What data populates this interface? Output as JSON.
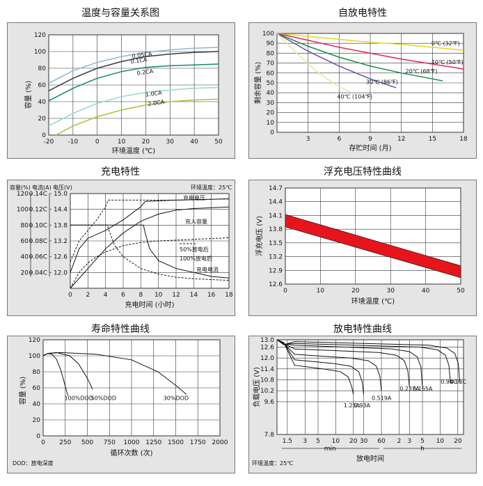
{
  "chart_data": [
    {
      "type": "line",
      "title": "温度与容量关系图",
      "xlabel": "环境温度 (℃)",
      "ylabel": "容量 (%)",
      "xlim": [
        -20,
        50
      ],
      "ylim": [
        0,
        120
      ],
      "xticks": [
        -20,
        -10,
        0,
        10,
        20,
        30,
        40,
        50
      ],
      "yticks": [
        0,
        20,
        40,
        60,
        80,
        100,
        120
      ],
      "grid": true,
      "series": [
        {
          "name": "0.05CA",
          "color": "#8fb6d0",
          "x": [
            -20,
            -10,
            0,
            10,
            20,
            30,
            40,
            50
          ],
          "y": [
            62,
            77,
            87,
            94,
            99,
            102,
            104,
            105
          ]
        },
        {
          "name": "0.1CA",
          "color": "#3a3a3a",
          "x": [
            -20,
            -10,
            0,
            10,
            20,
            30,
            40,
            50
          ],
          "y": [
            53,
            68,
            80,
            88,
            94,
            97,
            99,
            100
          ]
        },
        {
          "name": "0.2CA",
          "color": "#0e8a6a",
          "x": [
            -20,
            -10,
            0,
            10,
            20,
            30,
            40,
            50
          ],
          "y": [
            41,
            56,
            68,
            76,
            81,
            83,
            84,
            85
          ]
        },
        {
          "name": "1.0CA",
          "color": "#8fd9cf",
          "x": [
            -20,
            -10,
            0,
            10,
            20,
            30,
            40,
            50
          ],
          "y": [
            11,
            26,
            38,
            46,
            51,
            54,
            56,
            57
          ]
        },
        {
          "name": "2.0CA",
          "color": "#9cc83a",
          "x": [
            -17,
            -10,
            0,
            10,
            20,
            30,
            40,
            50
          ],
          "y": [
            0,
            11,
            22,
            30,
            36,
            40,
            42,
            43
          ]
        }
      ]
    },
    {
      "type": "line",
      "title": "自放电特性",
      "xlabel": "存贮时间 (月)",
      "ylabel": "剩余容量 (%)",
      "xlim": [
        0,
        18
      ],
      "ylim": [
        0,
        100
      ],
      "xticks": [
        3,
        6,
        9,
        12,
        15,
        18
      ],
      "yticks": [
        0,
        10,
        20,
        30,
        40,
        50,
        60,
        70,
        80,
        90,
        100
      ],
      "grid": true,
      "series": [
        {
          "name": "0℃ (32℉)",
          "color": "#e6d51a",
          "x": [
            0,
            3,
            6,
            9,
            12,
            15,
            18
          ],
          "y": [
            100,
            97,
            94,
            91,
            89,
            86,
            83
          ]
        },
        {
          "name": "10℃ (50℉)",
          "color": "#e0265a",
          "x": [
            0,
            3,
            6,
            9,
            12,
            15,
            18
          ],
          "y": [
            100,
            93,
            86,
            80,
            74,
            69,
            64
          ]
        },
        {
          "name": "20℃ (68℉)",
          "color": "#1d8a4a",
          "x": [
            0,
            3,
            6,
            9,
            12,
            15,
            16
          ],
          "y": [
            100,
            87,
            76,
            67,
            60,
            54,
            52
          ]
        },
        {
          "name": "30℃ (86℉)",
          "color": "#6d4da8",
          "x": [
            0,
            3,
            6,
            9,
            11.5
          ],
          "y": [
            100,
            82,
            67,
            54,
            45
          ]
        },
        {
          "name": "40℃ (104℉)",
          "color": "#e8e6a0",
          "x": [
            0,
            2,
            4,
            6,
            7
          ],
          "y": [
            100,
            79,
            60,
            46,
            41
          ]
        }
      ]
    },
    {
      "type": "line",
      "title": "充电特性",
      "xlabel": "充电时间 (小时)",
      "ylabel_capacity": "容量(%)",
      "ylabel_current": "电流(A)",
      "ylabel_voltage": "电压(V)",
      "note": "环境温度：25℃",
      "xlim": [
        0,
        18
      ],
      "xticks": [
        0,
        2,
        4,
        6,
        8,
        10,
        12,
        14,
        16,
        18
      ],
      "capacity_ticks": [
        20,
        40,
        60,
        80,
        100,
        120
      ],
      "current_ticks": [
        "0.04C",
        "0.06C",
        "0.08C",
        "0.10C",
        "0.12C",
        "0.14C"
      ],
      "voltage_ticks": [
        12.0,
        12.6,
        13.2,
        13.8,
        14.4,
        15.0
      ],
      "grid": true,
      "legend": [
        "50%放电后",
        "100%放电后"
      ],
      "annotations": [
        "充电电压",
        "充入容量",
        "充电电流"
      ],
      "series": [
        {
          "name": "充电电压 100%放电后",
          "style": "solid",
          "x": [
            0,
            1,
            2,
            4,
            6,
            8,
            8.5,
            12,
            18
          ],
          "y_voltage": [
            12.0,
            12.9,
            13.3,
            13.6,
            14.0,
            14.5,
            14.7,
            14.75,
            14.8
          ]
        },
        {
          "name": "充电电压 50%放电后",
          "style": "dashed",
          "x": [
            0,
            1,
            2,
            3,
            4,
            4.3,
            8,
            12,
            18
          ],
          "y_voltage": [
            12.4,
            13.2,
            13.6,
            14.0,
            14.5,
            14.75,
            14.75,
            14.75,
            14.8
          ]
        },
        {
          "name": "充入容量 100%放电后",
          "style": "solid",
          "x": [
            0,
            2,
            4,
            6,
            8,
            10,
            12,
            14,
            16,
            18
          ],
          "y_capacity": [
            0,
            25,
            50,
            70,
            85,
            94,
            99,
            101,
            102,
            103
          ]
        },
        {
          "name": "充入容量 50%放电后",
          "style": "dashed",
          "x": [
            0,
            1,
            2,
            3,
            4,
            6,
            8,
            10,
            12,
            14,
            16,
            18
          ],
          "y_capacity": [
            0,
            20,
            32,
            40,
            46,
            54,
            58,
            60,
            61,
            62,
            63,
            64
          ]
        },
        {
          "name": "充电电流 100%放电后",
          "style": "solid",
          "x": [
            0,
            8.3,
            8.5,
            9,
            10,
            12,
            14,
            16,
            18
          ],
          "y_current": [
            "0.10C",
            "0.10C",
            "0.09C",
            "0.07C",
            "0.055C",
            "0.045C",
            "0.04C",
            "0.035C",
            "0.033C"
          ]
        },
        {
          "name": "充电电流 50%放电后",
          "style": "dashed",
          "x": [
            0,
            4.2,
            4.5,
            5,
            6,
            8,
            10,
            12,
            14,
            16,
            18
          ],
          "y_current": [
            "0.10C",
            "0.10C",
            "0.09C",
            "0.075C",
            "0.06C",
            "0.045C",
            "0.038C",
            "0.034C",
            "0.032C",
            "0.031C",
            "0.03C"
          ]
        }
      ]
    },
    {
      "type": "area",
      "title": "浮充电压特性曲线",
      "xlabel": "环境温度 (℃)",
      "ylabel": "浮充电压 (V)",
      "xlim": [
        0,
        50
      ],
      "ylim": [
        12.6,
        14.7
      ],
      "xticks": [
        0,
        10,
        20,
        30,
        40,
        50
      ],
      "yticks": [
        12.6,
        12.9,
        13.2,
        13.5,
        13.8,
        14.1,
        14.4,
        14.7
      ],
      "grid": true,
      "band": {
        "color": "#e8141c",
        "x": [
          0,
          50
        ],
        "upper": [
          14.12,
          13.0
        ],
        "lower": [
          13.85,
          12.74
        ]
      }
    },
    {
      "type": "line",
      "title": "寿命特性曲线",
      "xlabel": "循环次数 (次)",
      "ylabel": "容量 (%)",
      "footnote": "DOD：放电深度",
      "xlim": [
        0,
        2000
      ],
      "ylim": [
        0,
        120
      ],
      "xticks": [
        0,
        250,
        500,
        750,
        1000,
        1250,
        1500,
        1750,
        2000
      ],
      "yticks": [
        0,
        20,
        40,
        60,
        80,
        100,
        120
      ],
      "grid": true,
      "series": [
        {
          "name": "100%DOD",
          "x": [
            0,
            50,
            100,
            150,
            200,
            250,
            280
          ],
          "y": [
            100,
            103,
            102,
            96,
            82,
            62,
            50
          ]
        },
        {
          "name": "50%DOD",
          "x": [
            0,
            50,
            150,
            300,
            400,
            500,
            560
          ],
          "y": [
            100,
            103,
            104,
            100,
            90,
            72,
            58
          ]
        },
        {
          "name": "30%DOD",
          "x": [
            0,
            50,
            200,
            600,
            1000,
            1300,
            1500,
            1620
          ],
          "y": [
            100,
            103,
            104,
            102,
            95,
            80,
            63,
            52
          ]
        }
      ]
    },
    {
      "type": "line",
      "title": "放电特性曲线",
      "xlabel": "放电时间",
      "ylabel": "负载电压 (V)",
      "note": "环境温度：25℃",
      "ylim": [
        7.8,
        13.0
      ],
      "yticks": [
        7.8,
        9.6,
        10.2,
        10.8,
        11.4,
        12.0,
        12.6,
        13.0
      ],
      "xticks_min": [
        "1.5",
        "3",
        "5",
        "10",
        "20",
        "30",
        "60"
      ],
      "xticks_h": [
        "2",
        "3",
        "5",
        "10",
        "20"
      ],
      "xunit_min": "min",
      "xunit_h": "h",
      "grid": true,
      "series": [
        {
          "name": "1.25A",
          "end_voltage": 10.0
        },
        {
          "name": "0.93A",
          "end_voltage": 10.0
        },
        {
          "name": "0.519A",
          "end_voltage": 10.2
        },
        {
          "name": "0.237A",
          "end_voltage": 10.4
        },
        {
          "name": "0.165A",
          "end_voltage": 10.4
        },
        {
          "name": "0.94C",
          "end_voltage": 10.6
        },
        {
          "name": "0.05C",
          "end_voltage": 10.6
        }
      ]
    }
  ]
}
